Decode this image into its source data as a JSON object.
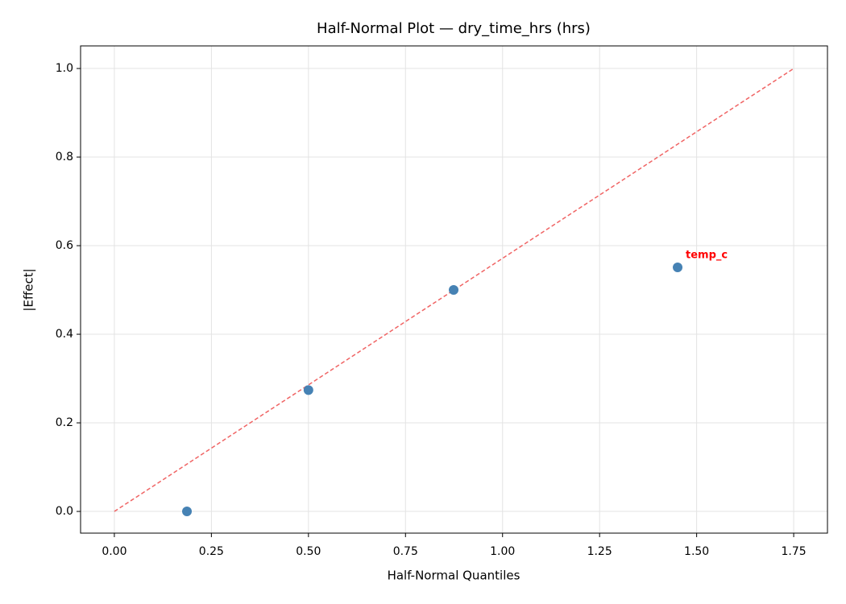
{
  "chart_data": {
    "type": "scatter",
    "title": "Half-Normal Plot — dry_time_hrs (hrs)",
    "x_label": "Half-Normal Quantiles",
    "y_label": "|Effect|",
    "x": [
      0.187,
      0.5,
      0.874,
      1.451
    ],
    "values": [
      0,
      0.274,
      0.5,
      0.551
    ],
    "point_labels": [
      null,
      null,
      null,
      "temp_c"
    ],
    "color": "#4682b4",
    "label_color": "#ff0000",
    "reference_line": {
      "x": [
        0,
        1.75
      ],
      "y": [
        0,
        1.0
      ],
      "color": "#f06464"
    },
    "xlim": [
      -0.087,
      1.837
    ],
    "ylim": [
      -0.049,
      1.051
    ],
    "xticks": [
      {
        "value": 0,
        "label": "0.00"
      },
      {
        "value": 0.25,
        "label": "0.25"
      },
      {
        "value": 0.5,
        "label": "0.50"
      },
      {
        "value": 0.75,
        "label": "0.75"
      },
      {
        "value": 1.0,
        "label": "1.00"
      },
      {
        "value": 1.25,
        "label": "1.25"
      },
      {
        "value": 1.5,
        "label": "1.50"
      },
      {
        "value": 1.75,
        "label": "1.75"
      }
    ],
    "yticks": [
      {
        "value": 0,
        "label": "0.0"
      },
      {
        "value": 0.2,
        "label": "0.2"
      },
      {
        "value": 0.4,
        "label": "0.4"
      },
      {
        "value": 0.6,
        "label": "0.6"
      },
      {
        "value": 0.8,
        "label": "0.8"
      },
      {
        "value": 1.0,
        "label": "1.0"
      }
    ],
    "grid": true
  }
}
